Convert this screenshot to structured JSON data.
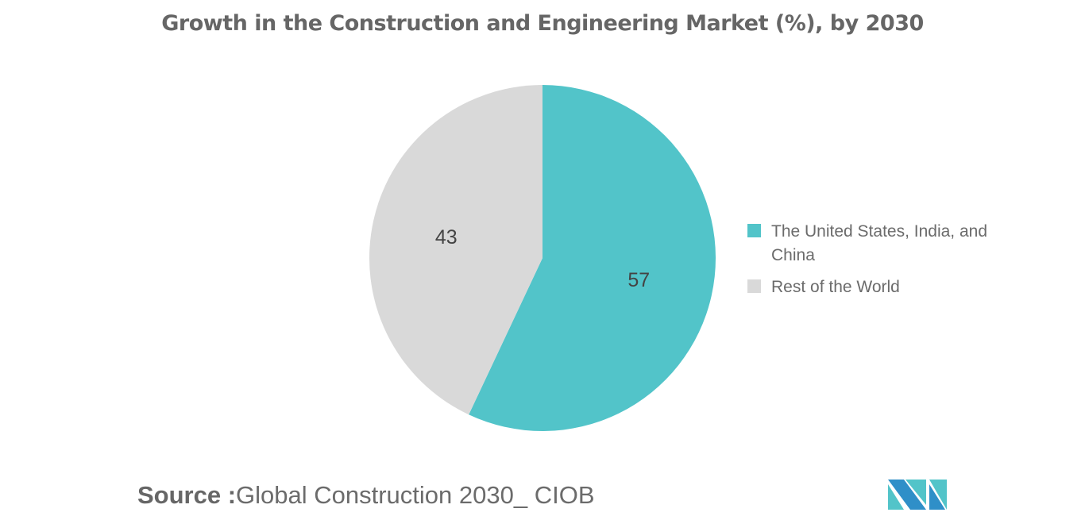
{
  "chart_data": {
    "type": "pie",
    "title": "Growth in the Construction and Engineering Market (%), by 2030",
    "slices": [
      {
        "label": "The United States, India, and China",
        "value": 57,
        "color": "#52c4c9"
      },
      {
        "label": "Rest of the World",
        "value": 43,
        "color": "#d9d9d9"
      }
    ],
    "start_angle": "top, clockwise",
    "legend_position": "right"
  },
  "source": {
    "label": "Source :",
    "text": "Global Construction 2030_ CIOB"
  },
  "logo": {
    "colors": [
      "#2f8fc8",
      "#52c4c9"
    ]
  }
}
